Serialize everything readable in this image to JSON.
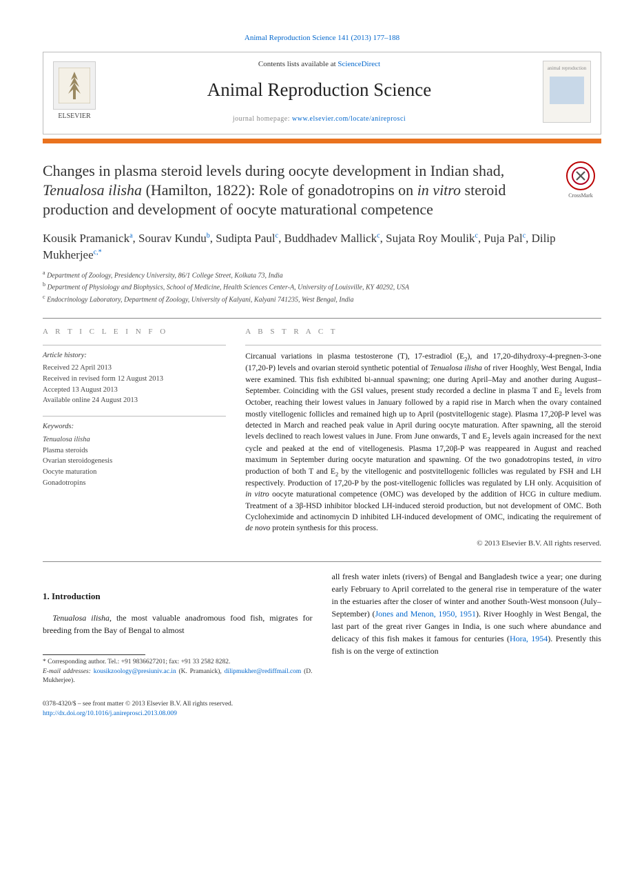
{
  "citation": "Animal Reproduction Science 141 (2013) 177–188",
  "header": {
    "publisher_logo_alt": "ELSEVIER",
    "contents_prefix": "Contents lists available at ",
    "contents_link": "ScienceDirect",
    "journal_name": "Animal Reproduction Science",
    "homepage_prefix": "journal homepage: ",
    "homepage_url": "www.elsevier.com/locate/anireprosci",
    "cover_label": "animal reproduction"
  },
  "colors": {
    "accent_bar": "#e9721e",
    "link": "#0066cc",
    "text": "#1a1a1a",
    "muted": "#888888"
  },
  "crossmark_label": "CrossMark",
  "title_html": "Changes in plasma steroid levels during oocyte development in Indian shad, <em>Tenualosa ilisha</em> (Hamilton, 1822): Role of gonadotropins on <em>in vitro</em> steroid production and development of oocyte maturational competence",
  "authors_html": "Kousik Pramanick<sup>a</sup>, Sourav Kundu<sup>b</sup>, Sudipta Paul<sup>c</sup>, Buddhadev Mallick<sup>c</sup>, Sujata Roy Moulik<sup>c</sup>, Puja Pal<sup>c</sup>, Dilip Mukherjee<sup>c,*</sup>",
  "affiliations": [
    {
      "sup": "a",
      "text": "Department of Zoology, Presidency University, 86/1 College Street, Kolkata 73, India"
    },
    {
      "sup": "b",
      "text": "Department of Physiology and Biophysics, School of Medicine, Health Sciences Center-A, University of Louisville, KY 40292, USA"
    },
    {
      "sup": "c",
      "text": "Endocrinology Laboratory, Department of Zoology, University of Kalyani, Kalyani 741235, West Bengal, India"
    }
  ],
  "article_info": {
    "heading": "a r t i c l e   i n f o",
    "history_title": "Article history:",
    "history": [
      "Received 22 April 2013",
      "Received in revised form 12 August 2013",
      "Accepted 13 August 2013",
      "Available online 24 August 2013"
    ],
    "keywords_title": "Keywords:",
    "keywords": [
      "Tenualosa ilisha",
      "Plasma steroids",
      "Ovarian steroidogenesis",
      "Oocyte maturation",
      "Gonadotropins"
    ]
  },
  "abstract": {
    "heading": "a b s t r a c t",
    "text_html": "Circanual variations in plasma testosterone (T), 17-estradiol (E<sub>2</sub>), and 17,20-dihydroxy-4-pregnen-3-one (17,20-P) levels and ovarian steroid synthetic potential of <em>Tenualosa ilisha</em> of river Hooghly, West Bengal, India were examined. This fish exhibited bi-annual spawning; one during April–May and another during August–September. Coinciding with the GSI values, present study recorded a decline in plasma T and E<sub>2</sub> levels from October, reaching their lowest values in January followed by a rapid rise in March when the ovary contained mostly vitellogenic follicles and remained high up to April (postvitellogenic stage). Plasma 17,20β-P level was detected in March and reached peak value in April during oocyte maturation. After spawning, all the steroid levels declined to reach lowest values in June. From June onwards, T and E<sub>2</sub> levels again increased for the next cycle and peaked at the end of vitellogenesis. Plasma 17,20β-P was reappeared in August and reached maximum in September during oocyte maturation and spawning. Of the two gonadotropins tested, <em>in vitro</em> production of both T and E<sub>2</sub> by the vitellogenic and postvitellogenic follicles was regulated by FSH and LH respectively. Production of 17,20-P by the post-vitellogenic follicles was regulated by LH only. Acquisition of <em>in vitro</em> oocyte maturational competence (OMC) was developed by the addition of HCG in culture medium. Treatment of a 3β-HSD inhibitor blocked LH-induced steroid production, but not development of OMC. Both Cycloheximide and actinomycin D inhibited LH-induced development of OMC, indicating the requirement of <em>de novo</em> protein synthesis for this process.",
    "copyright": "© 2013 Elsevier B.V. All rights reserved."
  },
  "introduction": {
    "heading": "1.  Introduction",
    "para1_html": "<em>Tenualosa ilisha</em>, the most valuable anadromous food fish, migrates for breeding from the Bay of Bengal to almost",
    "para2_html": "all fresh water inlets (rivers) of Bengal and Bangladesh twice a year; one during early February to April correlated to the general rise in temperature of the water in the estuaries after the closer of winter and another South-West monsoon (July–September) (<a>Jones and Menon, 1950, 1951</a>). River Hooghly in West Bengal, the last part of the great river Ganges in India, is one such where abundance and delicacy of this fish makes it famous for centuries (<a>Hora, 1954</a>). Presently this fish is on the verge of extinction"
  },
  "footnotes": {
    "corr": "* Corresponding author. Tel.: +91 9836627201; fax: +91 33 2582 8282.",
    "email_label": "E-mail addresses: ",
    "email1": "kousikzoology@presiuniv.ac.in",
    "email1_who": " (K. Pramanick),",
    "email2": "dilipmukher@rediffmail.com",
    "email2_who": " (D. Mukherjee)."
  },
  "bottom": {
    "issn_line": "0378-4320/$ – see front matter © 2013 Elsevier B.V. All rights reserved.",
    "doi": "http://dx.doi.org/10.1016/j.anireprosci.2013.08.009"
  }
}
